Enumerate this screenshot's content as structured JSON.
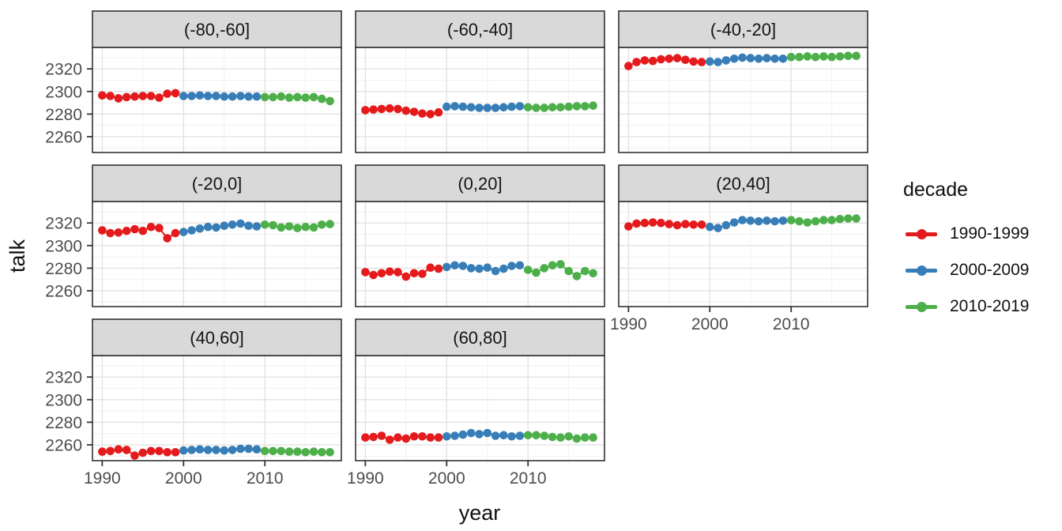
{
  "chart_data": {
    "type": "scatter",
    "title": "",
    "xlabel": "year",
    "ylabel": "talk",
    "legend_title": "decade",
    "legend_position": "right",
    "grid": true,
    "facet_variable": "latitude band",
    "x_ticks": [
      1990,
      2000,
      2010
    ],
    "x_minor_ticks": [
      1995,
      2005,
      2015
    ],
    "y_ticks": [
      2260,
      2280,
      2300,
      2320
    ],
    "y_minor_ticks": [
      2250,
      2270,
      2290,
      2310,
      2330
    ],
    "x_range": [
      1988.8,
      2019.4
    ],
    "y_range": [
      2246,
      2339
    ],
    "colors": {
      "panel_border": "#333333",
      "strip_bg": "#D9D9D9",
      "grid_major": "#E3E3E3",
      "grid_minor": "#F1F1F1",
      "tick_label": "#4D4D4D"
    },
    "decades": [
      {
        "name": "1990-1999",
        "color": "#E41A1C",
        "start_year": 1990
      },
      {
        "name": "2000-2009",
        "color": "#377EB8",
        "start_year": 2000
      },
      {
        "name": "2010-2019",
        "color": "#4DAF4A",
        "start_year": 2010
      }
    ],
    "facets": [
      {
        "label": "(-80,-60]",
        "series": [
          [
            2296.5,
            2296,
            2294,
            2295,
            2295.5,
            2296,
            2296,
            2294.5,
            2298,
            2298.5
          ],
          [
            2296,
            2296,
            2296.5,
            2296,
            2296,
            2295.5,
            2295.5,
            2296,
            2295.5,
            2295.5
          ],
          [
            2295,
            2295,
            2295.5,
            2294.5,
            2295,
            2294.5,
            2295,
            2293.5,
            2291.5
          ]
        ]
      },
      {
        "label": "(-60,-40]",
        "series": [
          [
            2283.5,
            2284,
            2284.5,
            2285,
            2284.5,
            2283,
            2282,
            2280.5,
            2280,
            2281.5
          ],
          [
            2286.5,
            2287,
            2286.5,
            2286,
            2285.5,
            2285.5,
            2285.5,
            2286,
            2286.5,
            2287
          ],
          [
            2286,
            2285.5,
            2285.5,
            2286,
            2286,
            2286.5,
            2287,
            2287,
            2287.5
          ]
        ]
      },
      {
        "label": "(-40,-20]",
        "series": [
          [
            2322.5,
            2326,
            2327.5,
            2327,
            2328.5,
            2329,
            2329.5,
            2328,
            2326.5,
            2326
          ],
          [
            2326.5,
            2326,
            2327.5,
            2329,
            2330,
            2329.5,
            2329,
            2329.5,
            2329,
            2329
          ],
          [
            2330.5,
            2330.5,
            2331,
            2330.5,
            2331,
            2330.5,
            2331,
            2331.5,
            2331.5
          ]
        ]
      },
      {
        "label": "(-20,0]",
        "series": [
          [
            2313.5,
            2311,
            2311.5,
            2313,
            2314.5,
            2313,
            2316.5,
            2315.5,
            2306.5,
            2311
          ],
          [
            2312,
            2313.5,
            2315,
            2316.5,
            2316,
            2317.5,
            2318.5,
            2319.5,
            2317.5,
            2317
          ],
          [
            2318.5,
            2318,
            2316,
            2317,
            2315.5,
            2316.5,
            2316,
            2318.5,
            2319
          ]
        ]
      },
      {
        "label": "(0,20]",
        "series": [
          [
            2276.5,
            2274,
            2275.5,
            2277,
            2276.5,
            2272.5,
            2275.5,
            2275,
            2280.5,
            2279.5
          ],
          [
            2281,
            2282.5,
            2282,
            2280,
            2279.5,
            2280.5,
            2277.5,
            2279.5,
            2282,
            2282.5
          ],
          [
            2278.5,
            2276,
            2280,
            2282.5,
            2283.5,
            2277.5,
            2273,
            2277.5,
            2275.5
          ]
        ]
      },
      {
        "label": "(20,40]",
        "series": [
          [
            2317,
            2319.5,
            2320,
            2320.5,
            2320,
            2319,
            2318,
            2319,
            2318.5,
            2318.5
          ],
          [
            2316.5,
            2315.5,
            2318,
            2320.5,
            2322.5,
            2322,
            2321.5,
            2322,
            2321.5,
            2322
          ],
          [
            2322.5,
            2321.5,
            2320.5,
            2321.5,
            2322.5,
            2322.5,
            2323.5,
            2324,
            2324
          ]
        ]
      },
      {
        "label": "(40,60]",
        "series": [
          [
            2254,
            2254.5,
            2256,
            2255.5,
            2250.5,
            2253,
            2254.5,
            2254.5,
            2253.5,
            2253.5
          ],
          [
            2255,
            2255.5,
            2256,
            2255.5,
            2255.5,
            2255,
            2255.5,
            2256.5,
            2256.5,
            2256
          ],
          [
            2254.5,
            2254.5,
            2254.5,
            2254,
            2254,
            2253.5,
            2254,
            2253.5,
            2253.5
          ]
        ]
      },
      {
        "label": "(60,80]",
        "series": [
          [
            2266.5,
            2267,
            2268,
            2264.5,
            2266.5,
            2265.5,
            2267.5,
            2267.5,
            2266.5,
            2266.5
          ],
          [
            2267.5,
            2268,
            2269,
            2270.5,
            2269.5,
            2270.5,
            2268,
            2268.5,
            2267.5,
            2268
          ],
          [
            2268.5,
            2268.5,
            2268,
            2267,
            2266.5,
            2267.5,
            2265.5,
            2266.5,
            2266.5
          ]
        ]
      }
    ]
  }
}
